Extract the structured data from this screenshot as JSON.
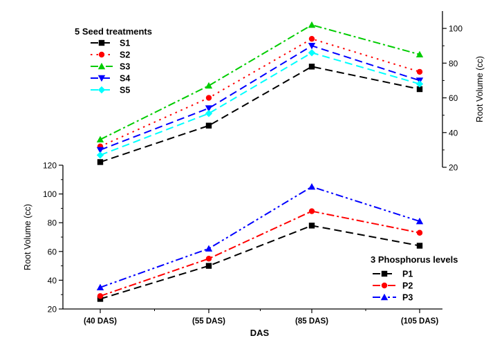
{
  "chart_data": [
    {
      "type": "line",
      "panel": "top",
      "categories": [
        "(40 DAS)",
        "(55 DAS)",
        "(85 DAS)",
        "(105 DAS)"
      ],
      "legend_title": "5 Seed treatments",
      "legend_position": "top-left",
      "ylabel": "Root Volume (cc)",
      "yaxis_side": "right",
      "ylim": [
        20,
        110
      ],
      "yticks": [
        20,
        40,
        60,
        80,
        100
      ],
      "grid": false,
      "series": [
        {
          "name": "S1",
          "values": [
            23,
            44,
            78,
            65
          ],
          "color": "#000000",
          "marker": "square",
          "dash": "dash"
        },
        {
          "name": "S2",
          "values": [
            32,
            60,
            94,
            75
          ],
          "color": "#ff0000",
          "marker": "circle",
          "dash": "dot"
        },
        {
          "name": "S3",
          "values": [
            36,
            67,
            102,
            85
          ],
          "color": "#00cc00",
          "marker": "triangle-up",
          "dash": "dash-dot"
        },
        {
          "name": "S4",
          "values": [
            30,
            54,
            90,
            70
          ],
          "color": "#0000ff",
          "marker": "triangle-down",
          "dash": "dash"
        },
        {
          "name": "S5",
          "values": [
            27,
            51,
            86,
            68
          ],
          "color": "#00ffff",
          "marker": "diamond",
          "dash": "dash"
        }
      ]
    },
    {
      "type": "line",
      "panel": "bottom",
      "categories": [
        "(40 DAS)",
        "(55 DAS)",
        "(85 DAS)",
        "(105 DAS)"
      ],
      "xlabel": "DAS",
      "ylabel": "Root Volume (cc)",
      "legend_title": "3 Phosphorus levels",
      "legend_position": "bottom-right",
      "ylim": [
        20,
        120
      ],
      "yticks": [
        20,
        40,
        60,
        80,
        100,
        120
      ],
      "grid": false,
      "series": [
        {
          "name": "P1",
          "values": [
            27,
            50,
            78,
            64
          ],
          "color": "#000000",
          "marker": "square",
          "dash": "dash"
        },
        {
          "name": "P2",
          "values": [
            29,
            55,
            88,
            73
          ],
          "color": "#ff0000",
          "marker": "circle",
          "dash": "dash-dot"
        },
        {
          "name": "P3",
          "values": [
            35,
            62,
            105,
            81
          ],
          "color": "#0000ff",
          "marker": "triangle-up",
          "dash": "dash-dot-dot"
        }
      ]
    }
  ]
}
